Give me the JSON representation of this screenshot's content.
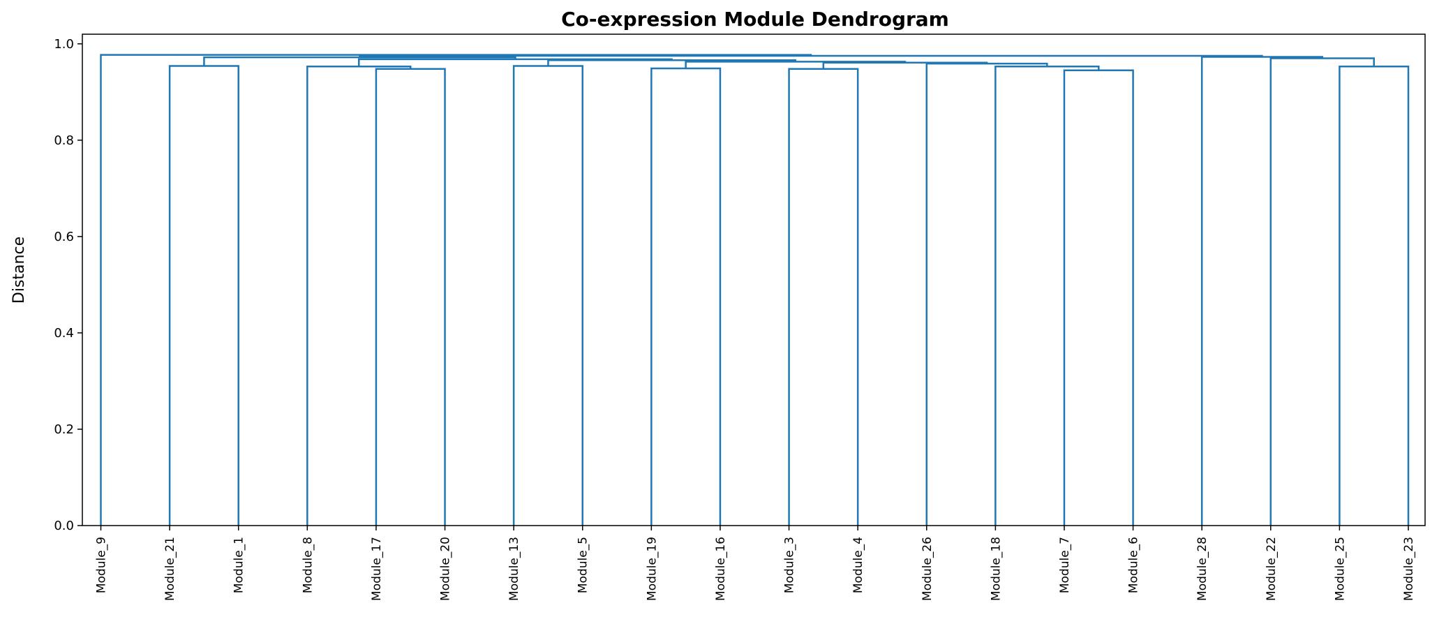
{
  "chart_data": {
    "type": "dendrogram",
    "title": "Co-expression Module Dendrogram",
    "xlabel": "",
    "ylabel": "Distance",
    "ylim": [
      0.0,
      1.02
    ],
    "yticks": [
      "0.0",
      "0.2",
      "0.4",
      "0.6",
      "0.8",
      "1.0"
    ],
    "grid": false,
    "color": "#1f77b4",
    "leaves": [
      "Module_9",
      "Module_21",
      "Module_1",
      "Module_8",
      "Module_17",
      "Module_20",
      "Module_13",
      "Module_5",
      "Module_19",
      "Module_16",
      "Module_3",
      "Module_4",
      "Module_26",
      "Module_18",
      "Module_7",
      "Module_6",
      "Module_28",
      "Module_22",
      "Module_25",
      "Module_23"
    ],
    "merges": [
      {
        "left": "Module_21",
        "right": "Module_1",
        "height": 0.954
      },
      {
        "left": "Module_17",
        "right": "Module_20",
        "height": 0.948
      },
      {
        "left": "Module_8",
        "right": "Module_17+Module_20",
        "height": 0.953
      },
      {
        "left": "Module_13",
        "right": "Module_5",
        "height": 0.954
      },
      {
        "left": "Module_19",
        "right": "Module_16",
        "height": 0.949
      },
      {
        "left": "Module_3",
        "right": "Module_4",
        "height": 0.948
      },
      {
        "left": "Module_7",
        "right": "Module_6",
        "height": 0.945
      },
      {
        "left": "Module_18",
        "right": "Module_7+Module_6",
        "height": 0.953
      },
      {
        "left": "Module_26",
        "right": "Module_18+Module_7+Module_6",
        "height": 0.959
      },
      {
        "left": "Module_3+Module_4",
        "right": "Module_26+Module_18+Module_7+Module_6",
        "height": 0.961
      },
      {
        "left": "Module_19+Module_16",
        "right": "Module_3+Module_4+Module_26+Module_18+Module_7+Module_6",
        "height": 0.963
      },
      {
        "left": "Module_13+Module_5",
        "right": "Module_19..Module_6",
        "height": 0.966
      },
      {
        "left": "Module_8+Module_17+Module_20",
        "right": "Module_13..Module_6",
        "height": 0.968
      },
      {
        "left": "Module_21+Module_1",
        "right": "Module_8..Module_6",
        "height": 0.972
      },
      {
        "left": "Module_25",
        "right": "Module_23",
        "height": 0.953
      },
      {
        "left": "Module_22",
        "right": "Module_25+Module_23",
        "height": 0.97
      },
      {
        "left": "Module_28",
        "right": "Module_22+Module_25+Module_23",
        "height": 0.973
      },
      {
        "left": "Module_21..Module_6",
        "right": "Module_28..Module_23",
        "height": 0.975
      },
      {
        "left": "Module_9",
        "right": "Module_21..Module_23",
        "height": 0.977
      }
    ]
  }
}
